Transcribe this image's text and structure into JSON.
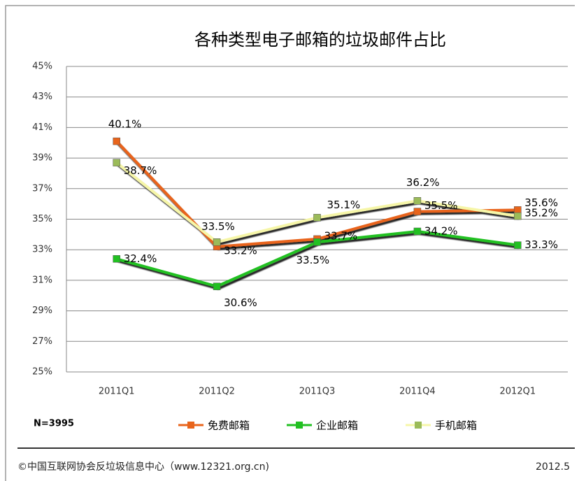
{
  "chart_data": {
    "type": "line",
    "title": "各种类型电子邮箱的垃圾邮件占比",
    "categories": [
      "2011Q1",
      "2011Q2",
      "2011Q3",
      "2011Q4",
      "2012Q1"
    ],
    "series": [
      {
        "name": "免费邮箱",
        "color": "#e8641b",
        "marker_color": "#e8641b",
        "values": [
          40.1,
          33.2,
          33.7,
          35.5,
          35.6
        ],
        "value_labels": [
          "40.1%",
          "33.2%",
          "33.7%",
          "35.5%",
          "35.6%"
        ]
      },
      {
        "name": "企业邮箱",
        "color": "#22c022",
        "marker_color": "#22c022",
        "values": [
          32.4,
          30.6,
          33.5,
          34.2,
          33.3
        ],
        "value_labels": [
          "32.4%",
          "30.6%",
          "33.5%",
          "34.2%",
          "33.3%"
        ]
      },
      {
        "name": "手机邮箱",
        "color": "#f6f6a8",
        "marker_color": "#9bbb59",
        "values": [
          38.7,
          33.5,
          35.1,
          36.2,
          35.2
        ],
        "value_labels": [
          "38.7%",
          "33.5%",
          "35.1%",
          "36.2%",
          "35.2%"
        ]
      }
    ],
    "ylim": [
      25,
      45
    ],
    "yticks": [
      {
        "value": 25,
        "label": "25%"
      },
      {
        "value": 27,
        "label": "27%"
      },
      {
        "value": 29,
        "label": "29%"
      },
      {
        "value": 31,
        "label": "31%"
      },
      {
        "value": 33,
        "label": "33%"
      },
      {
        "value": 35,
        "label": "35%"
      },
      {
        "value": 37,
        "label": "37%"
      },
      {
        "value": 39,
        "label": "39%"
      },
      {
        "value": 41,
        "label": "41%"
      },
      {
        "value": 43,
        "label": "43%"
      },
      {
        "value": 45,
        "label": "45%"
      }
    ],
    "grid": true,
    "legend": "bottom",
    "note": "N=3995",
    "source": "©中国互联网协会反垃圾信息中心（www.12321.org.cn)",
    "date": "2012.5"
  }
}
